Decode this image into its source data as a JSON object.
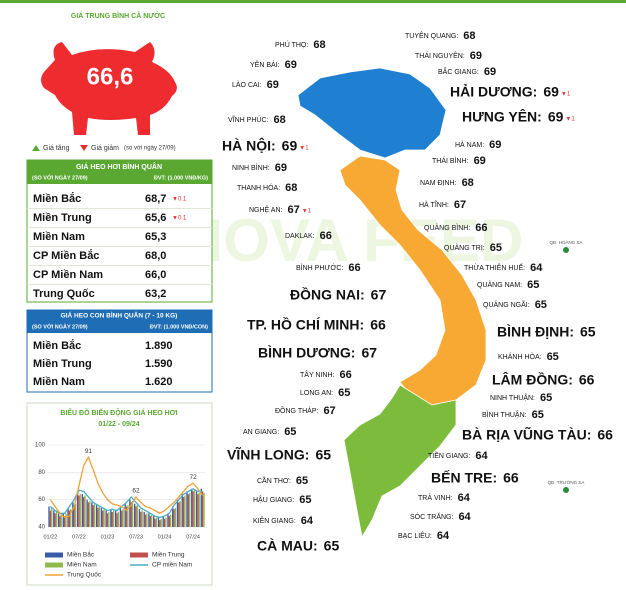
{
  "watermark": "ANOVA FEED",
  "header": {
    "title": "GIÁ TRUNG BÌNH CẢ NƯỚC",
    "national_price": "66,6",
    "legend_up": "Giá tăng",
    "legend_down": "Giá giảm",
    "legend_note": "(so với ngày 27/09)"
  },
  "live_table": {
    "title": "GIÁ HEO HƠI BÌNH QUÂN",
    "note": "(SO VỚI NGÀY 27/09)",
    "unit": "ĐVT: (1.000 VNĐ/KG)",
    "rows": [
      [
        "Miền Bắc",
        "68,7",
        "▼0.1"
      ],
      [
        "Miền Trung",
        "65,6",
        "▼0.1"
      ],
      [
        "Miền Nam",
        "65,3"
      ],
      [
        "CP Miền Bắc",
        "68,0"
      ],
      [
        "CP Miền Nam",
        "66,0"
      ],
      [
        "Trung Quốc",
        "63,2"
      ]
    ]
  },
  "piglet_table": {
    "title": "GIÁ HEO CON BÌNH QUÂN (7 - 10 KG)",
    "note": "(SO VỚI NGÀY 27/09)",
    "unit": "ĐVT: (1.000 VNĐ/CON)",
    "rows": [
      [
        "Miền Bắc",
        "1.890"
      ],
      [
        "Miền Trung",
        "1.590"
      ],
      [
        "Miền Nam",
        "1.620"
      ]
    ]
  },
  "map": {
    "islands": [
      "QĐ. HOÀNG SA",
      "QĐ. TRƯỜNG SA"
    ],
    "labels": [
      {
        "name": "PHÚ THỌ:",
        "value": "68"
      },
      {
        "name": "YÊN BÁI:",
        "value": "69"
      },
      {
        "name": "LÀO CAI:",
        "value": "69"
      },
      {
        "name": "VĨNH PHÚC:",
        "value": "68"
      },
      {
        "name": "HÀ NỘI:",
        "value": "69",
        "change": "▼1"
      },
      {
        "name": "NINH BÌNH:",
        "value": "69"
      },
      {
        "name": "THANH HÓA:",
        "value": "68"
      },
      {
        "name": "NGHỆ AN:",
        "value": "67",
        "change": "▼1"
      },
      {
        "name": "DAKLAK:",
        "value": "66"
      },
      {
        "name": "BÌNH PHƯỚC:",
        "value": "66"
      },
      {
        "name": "ĐỒNG NAI:",
        "value": "67"
      },
      {
        "name": "TP. HỒ CHÍ MINH:",
        "value": "66"
      },
      {
        "name": "BÌNH DƯƠNG:",
        "value": "67"
      },
      {
        "name": "TÂY NINH:",
        "value": "66"
      },
      {
        "name": "LONG AN:",
        "value": "65"
      },
      {
        "name": "ĐỒNG THÁP:",
        "value": "67"
      },
      {
        "name": "AN GIANG:",
        "value": "65"
      },
      {
        "name": "VĨNH LONG:",
        "value": "65"
      },
      {
        "name": "CẦN THƠ:",
        "value": "65"
      },
      {
        "name": "HẬU GIANG:",
        "value": "65"
      },
      {
        "name": "KIÊN GIANG:",
        "value": "64"
      },
      {
        "name": "CÀ MAU:",
        "value": "65"
      },
      {
        "name": "TUYÊN QUANG:",
        "value": "68"
      },
      {
        "name": "THÁI NGUYÊN:",
        "value": "69"
      },
      {
        "name": "BẮC GIANG:",
        "value": "69"
      },
      {
        "name": "HẢI DƯƠNG:",
        "value": "69",
        "change": "▼1"
      },
      {
        "name": "HƯNG YÊN:",
        "value": "69",
        "change": "▼1"
      },
      {
        "name": "HÀ NAM:",
        "value": "69"
      },
      {
        "name": "THÁI BÌNH:",
        "value": "69"
      },
      {
        "name": "NAM ĐỊNH:",
        "value": "68"
      },
      {
        "name": "HÀ TĨNH:",
        "value": "67"
      },
      {
        "name": "QUẢNG BÌNH:",
        "value": "66"
      },
      {
        "name": "QUẢNG TRỊ:",
        "value": "65"
      },
      {
        "name": "THỪA THIÊN HUẾ:",
        "value": "64"
      },
      {
        "name": "QUẢNG NAM:",
        "value": "65"
      },
      {
        "name": "QUẢNG NGÃI:",
        "value": "65"
      },
      {
        "name": "BÌNH ĐỊNH:",
        "value": "65"
      },
      {
        "name": "KHÁNH HÒA:",
        "value": "65"
      },
      {
        "name": "LÂM ĐỒNG:",
        "value": "66"
      },
      {
        "name": "NINH THUẬN:",
        "value": "65"
      },
      {
        "name": "BÌNH THUẬN:",
        "value": "65"
      },
      {
        "name": "BÀ RỊA VŨNG TÀU:",
        "value": "66"
      },
      {
        "name": "TIỀN GIANG:",
        "value": "64"
      },
      {
        "name": "BẾN TRE:",
        "value": "66"
      },
      {
        "name": "TRÀ VINH:",
        "value": "64"
      },
      {
        "name": "SÓC TRĂNG:",
        "value": "64"
      },
      {
        "name": "BẠC LIÊU:",
        "value": "64"
      }
    ]
  },
  "chart_data": {
    "type": "bar",
    "title": "BIỂU ĐỒ BIẾN ĐỘNG GIÁ HEO HƠI",
    "subtitle": "01/22 - 09/24",
    "categories": [
      "01/22",
      null,
      null,
      null,
      null,
      null,
      "07/22",
      null,
      null,
      null,
      null,
      null,
      "01/23",
      null,
      null,
      null,
      null,
      null,
      "07/23",
      null,
      null,
      null,
      null,
      null,
      "01/24",
      null,
      null,
      null,
      null,
      null,
      "07/24",
      null,
      null
    ],
    "ylim": [
      40,
      100
    ],
    "yticks": [
      40,
      60,
      80,
      100
    ],
    "series": [
      {
        "name": "Miền Bắc",
        "color": "#3a5ba8",
        "kind": "bar",
        "values": [
          55,
          52,
          50,
          50,
          54,
          58,
          66,
          64,
          60,
          58,
          56,
          54,
          52,
          53,
          52,
          54,
          57,
          60,
          57,
          53,
          51,
          50,
          48,
          47,
          48,
          50,
          55,
          60,
          64,
          66,
          68,
          66,
          68
        ]
      },
      {
        "name": "Miền Trung",
        "color": "#c0504d",
        "kind": "bar",
        "values": [
          52,
          50,
          48,
          48,
          52,
          56,
          63,
          62,
          58,
          56,
          54,
          52,
          50,
          51,
          50,
          52,
          55,
          58,
          55,
          51,
          49,
          48,
          46,
          45,
          46,
          48,
          53,
          58,
          62,
          64,
          66,
          64,
          66
        ]
      },
      {
        "name": "Miền Nam",
        "color": "#8fb84e",
        "kind": "bar",
        "values": [
          54,
          51,
          49,
          50,
          53,
          57,
          64,
          63,
          59,
          57,
          55,
          53,
          51,
          52,
          51,
          53,
          56,
          59,
          56,
          52,
          50,
          49,
          47,
          46,
          47,
          49,
          54,
          59,
          63,
          65,
          67,
          65,
          65
        ]
      },
      {
        "name": "CP miền Nam",
        "color": "#4bacc6",
        "kind": "line",
        "values": [
          55,
          52,
          50,
          50,
          55,
          60,
          67,
          66,
          62,
          58,
          56,
          54,
          52,
          53,
          52,
          55,
          58,
          62,
          58,
          54,
          52,
          50,
          48,
          47,
          48,
          50,
          56,
          60,
          64,
          66,
          68,
          66,
          66
        ]
      },
      {
        "name": "Trung Quốc",
        "color": "#eea236",
        "kind": "line",
        "labeled_points": [
          8,
          18,
          30
        ],
        "values": [
          60,
          55,
          50,
          47,
          48,
          55,
          70,
          85,
          91,
          82,
          72,
          65,
          60,
          57,
          56,
          55,
          52,
          56,
          62,
          58,
          55,
          54,
          52,
          50,
          52,
          55,
          58,
          62,
          66,
          70,
          72,
          68,
          63
        ]
      }
    ]
  }
}
